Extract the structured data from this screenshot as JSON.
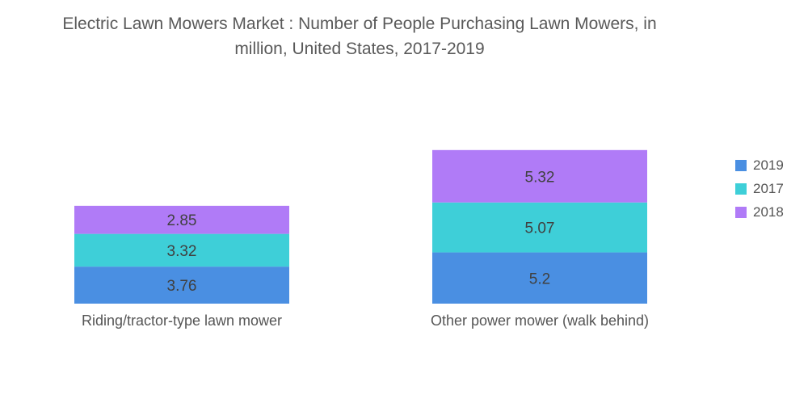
{
  "chart_data": {
    "type": "bar",
    "stacked": true,
    "title_line1": "Electric Lawn Mowers Market : Number of People Purchasing Lawn Mowers, in",
    "title_line2": "million, United States, 2017-2019",
    "categories": [
      "Riding/tractor-type lawn mower",
      "Other power mower (walk behind)"
    ],
    "series": [
      {
        "name": "2019",
        "color": "#4A8FE2",
        "values": [
          3.76,
          5.2
        ]
      },
      {
        "name": "2017",
        "color": "#3ECFD8",
        "values": [
          3.32,
          5.07
        ]
      },
      {
        "name": "2018",
        "color": "#B07BF7",
        "values": [
          2.85,
          5.32
        ]
      }
    ],
    "legend": [
      "2019",
      "2017",
      "2018"
    ],
    "legend_position": "right",
    "xlabel": "",
    "ylabel": "",
    "grid": false,
    "ylim": [
      0,
      16
    ]
  }
}
